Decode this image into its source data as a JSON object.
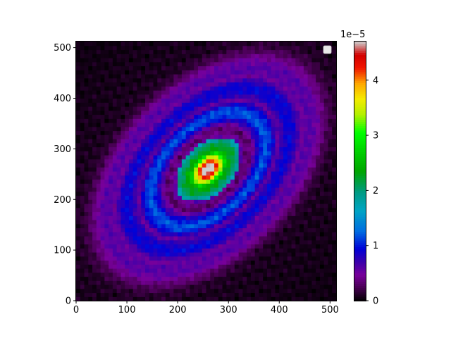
{
  "chart_data": {
    "type": "heatmap",
    "title": "",
    "xlabel": "",
    "ylabel": "",
    "xlim": [
      0,
      512
    ],
    "ylim": [
      0,
      512
    ],
    "x_ticks": [
      "0",
      "100",
      "200",
      "300",
      "400",
      "500"
    ],
    "y_ticks": [
      "0",
      "100",
      "200",
      "300",
      "400",
      "500"
    ],
    "colorbar": {
      "colormap": "nipy_spectral",
      "range": [
        0,
        4.7e-05
      ],
      "ticks": [
        "0",
        "1",
        "2",
        "3",
        "4"
      ],
      "offset_text": "1e−5"
    },
    "legend": {
      "placement": "top-right",
      "entries": [
        ""
      ]
    },
    "pattern": {
      "description_of_field": "concentric tilted elliptical rings of intensity",
      "center": [
        260,
        260
      ],
      "peak_value": 4.7e-05,
      "background_value": 0.0,
      "orientation_deg": 45,
      "major_to_minor_ratio": 1.6,
      "rings": [
        {
          "semi_minor": 48,
          "semi_major": 75,
          "value": 2.6e-05
        },
        {
          "semi_minor": 85,
          "semi_major": 135,
          "value": 1.05e-05
        },
        {
          "semi_minor": 120,
          "semi_major": 190,
          "value": 8e-06
        },
        {
          "semi_minor": 150,
          "semi_major": 245,
          "value": 5e-06
        }
      ]
    }
  }
}
